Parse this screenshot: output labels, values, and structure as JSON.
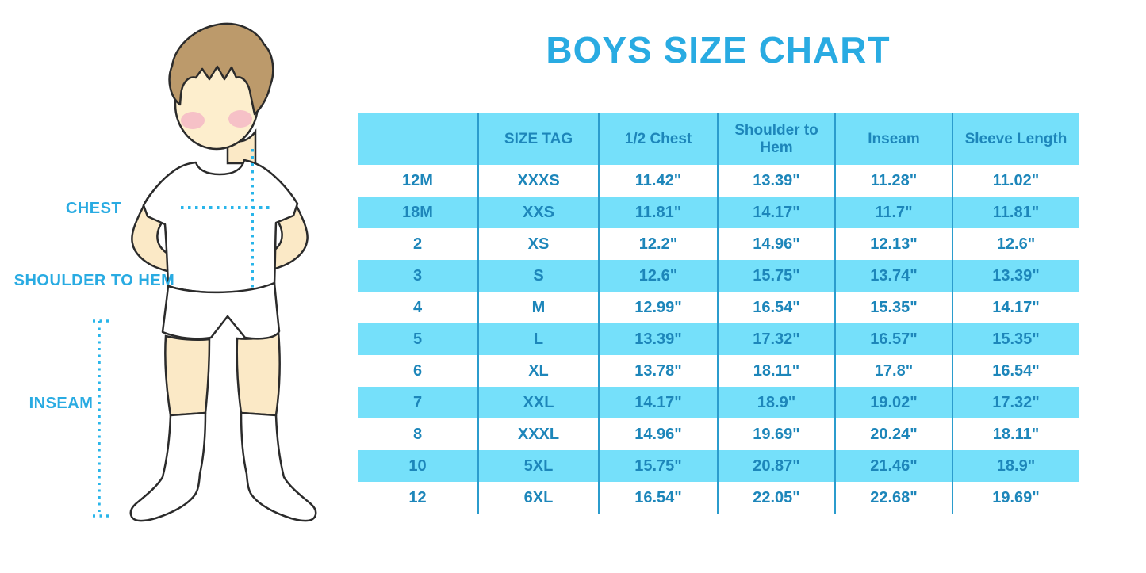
{
  "title": "BOYS SIZE CHART",
  "figure": {
    "description": "cartoon-boy-measurement-guide",
    "labels": {
      "chest": "CHEST",
      "shoulder_to_hem": "SHOULDER TO HEM",
      "inseam": "INSEAM"
    }
  },
  "colors": {
    "accent_blue": "#29abe2",
    "table_text_blue": "#1d86ba",
    "row_fill_cyan": "#75e0fa",
    "grid_line_blue": "#2b9ccd",
    "dotted_line_blue": "#29b5ea",
    "skin": "#fbe9c6",
    "hair": "#bc9a6b",
    "blush": "#f4b9c5"
  },
  "chart_data": {
    "type": "table",
    "title": "BOYS SIZE CHART",
    "columns": [
      "",
      "SIZE TAG",
      "1/2 Chest",
      "Shoulder to Hem",
      "Inseam",
      "Sleeve Length"
    ],
    "rows": [
      [
        "12M",
        "XXXS",
        "11.42\"",
        "13.39\"",
        "11.28\"",
        "11.02\""
      ],
      [
        "18M",
        "XXS",
        "11.81\"",
        "14.17\"",
        "11.7\"",
        "11.81\""
      ],
      [
        "2",
        "XS",
        "12.2\"",
        "14.96\"",
        "12.13\"",
        "12.6\""
      ],
      [
        "3",
        "S",
        "12.6\"",
        "15.75\"",
        "13.74\"",
        "13.39\""
      ],
      [
        "4",
        "M",
        "12.99\"",
        "16.54\"",
        "15.35\"",
        "14.17\""
      ],
      [
        "5",
        "L",
        "13.39\"",
        "17.32\"",
        "16.57\"",
        "15.35\""
      ],
      [
        "6",
        "XL",
        "13.78\"",
        "18.11\"",
        "17.8\"",
        "16.54\""
      ],
      [
        "7",
        "XXL",
        "14.17\"",
        "18.9\"",
        "19.02\"",
        "17.32\""
      ],
      [
        "8",
        "XXXL",
        "14.96\"",
        "19.69\"",
        "20.24\"",
        "18.11\""
      ],
      [
        "10",
        "5XL",
        "15.75\"",
        "20.87\"",
        "21.46\"",
        "18.9\""
      ],
      [
        "12",
        "6XL",
        "16.54\"",
        "22.05\"",
        "22.68\"",
        "19.69\""
      ]
    ],
    "layout": {
      "header_fill": "#75e0fa",
      "alternating_rows": "white / #75e0fa starting white",
      "column_separators": "vertical blue lines only, no horizontal grid"
    }
  }
}
